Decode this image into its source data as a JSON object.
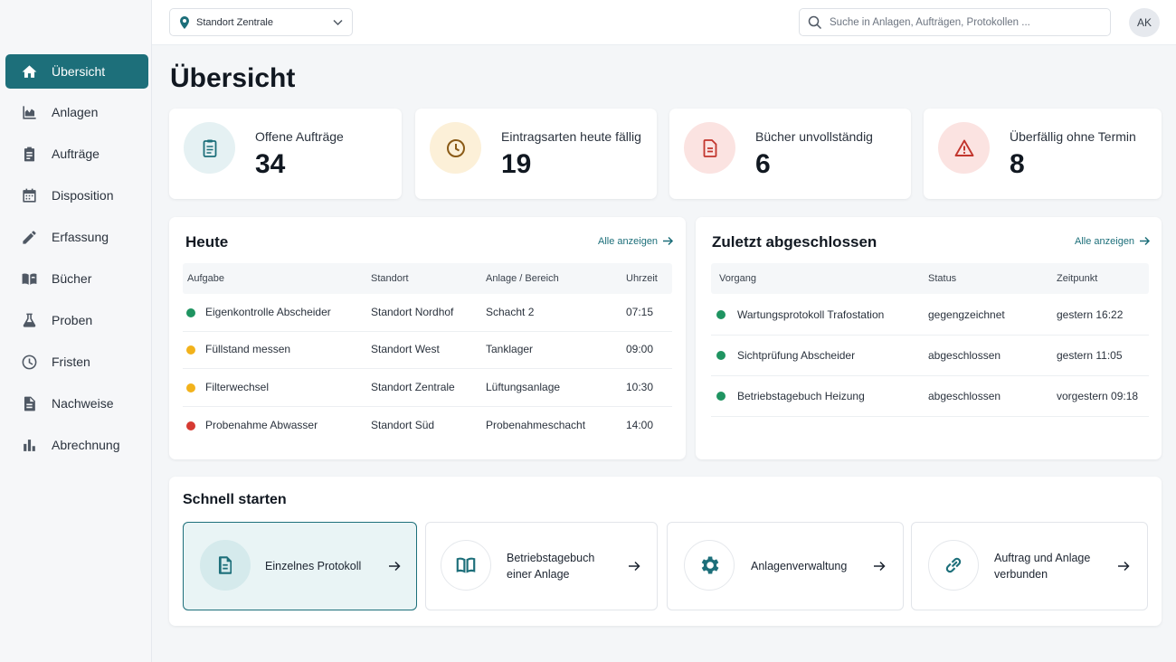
{
  "colors": {
    "accent": "#1d6f7a",
    "green": "#1f9461",
    "yellow": "#f2b21b",
    "red": "#d63a32"
  },
  "topbar": {
    "location": "Standort Zentrale",
    "search_placeholder": "Suche in Anlagen, Aufträgen, Protokollen ...",
    "avatar": "AK"
  },
  "sidebar": {
    "items": [
      {
        "label": "Übersicht",
        "icon": "home-icon",
        "active": true
      },
      {
        "label": "Anlagen",
        "icon": "chart-icon"
      },
      {
        "label": "Aufträge",
        "icon": "clipboard-icon"
      },
      {
        "label": "Disposition",
        "icon": "calendar-icon"
      },
      {
        "label": "Erfassung",
        "icon": "pencil-icon"
      },
      {
        "label": "Bücher",
        "icon": "book-icon"
      },
      {
        "label": "Proben",
        "icon": "flask-icon"
      },
      {
        "label": "Fristen",
        "icon": "clock-icon"
      },
      {
        "label": "Nachweise",
        "icon": "document-icon"
      },
      {
        "label": "Abrechnung",
        "icon": "bar-chart-icon"
      }
    ]
  },
  "page_title": "Übersicht",
  "stats": [
    {
      "label": "Offene Aufträge",
      "value": "34",
      "icon": "clipboard-icon"
    },
    {
      "label": "Eintragsarten heute fällig",
      "value": "19",
      "icon": "clock-icon"
    },
    {
      "label": "Bücher unvollständig",
      "value": "6",
      "icon": "document-icon"
    },
    {
      "label": "Überfällig ohne Termin",
      "value": "8",
      "icon": "warning-icon"
    }
  ],
  "today": {
    "title": "Heute",
    "all_link": "Alle anzeigen",
    "columns": [
      "Aufgabe",
      "Standort",
      "Anlage / Bereich",
      "Uhrzeit"
    ],
    "rows": [
      {
        "status": "green",
        "task": "Eigenkontrolle Abscheider",
        "location": "Standort Nordhof",
        "area": "Schacht 2",
        "time": "07:15"
      },
      {
        "status": "yellow",
        "task": "Füllstand messen",
        "location": "Standort West",
        "area": "Tanklager",
        "time": "09:00"
      },
      {
        "status": "yellow",
        "task": "Filterwechsel",
        "location": "Standort Zentrale",
        "area": "Lüftungsanlage",
        "time": "10:30"
      },
      {
        "status": "red",
        "task": "Probenahme Abwasser",
        "location": "Standort Süd",
        "area": "Probenahmeschacht",
        "time": "14:00"
      }
    ]
  },
  "recent": {
    "title": "Zuletzt abgeschlossen",
    "all_link": "Alle anzeigen",
    "columns": [
      "Vorgang",
      "Status",
      "Zeitpunkt"
    ],
    "rows": [
      {
        "status": "green",
        "process": "Wartungsprotokoll Trafostation",
        "state": "gegengzeichnet",
        "time": "gestern 16:22"
      },
      {
        "status": "green",
        "process": "Sichtprüfung Abscheider",
        "state": "abgeschlossen",
        "time": "gestern 11:05"
      },
      {
        "status": "green",
        "process": "Betriebstagebuch Heizung",
        "state": "abgeschlossen",
        "time": "vorgestern 09:18"
      }
    ]
  },
  "quickstart": {
    "title": "Schnell starten",
    "tiles": [
      {
        "label": "Einzelnes Protokoll",
        "icon": "document-icon",
        "active": true
      },
      {
        "label": "Betriebstagebuch einer Anlage",
        "icon": "book-icon"
      },
      {
        "label": "Anlagenverwaltung",
        "icon": "gear-icon"
      },
      {
        "label": "Auftrag und Anlage verbunden",
        "icon": "link-icon"
      }
    ]
  }
}
